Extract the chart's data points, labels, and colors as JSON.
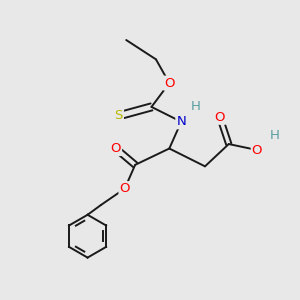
{
  "bg_color": "#e8e8e8",
  "atom_colors": {
    "O": "#ff0000",
    "N": "#0000cc",
    "S": "#b8b800",
    "H": "#5b9ea0"
  },
  "bond_color": "#1a1a1a",
  "bond_width": 1.4,
  "font_size": 9.5,
  "title": ""
}
